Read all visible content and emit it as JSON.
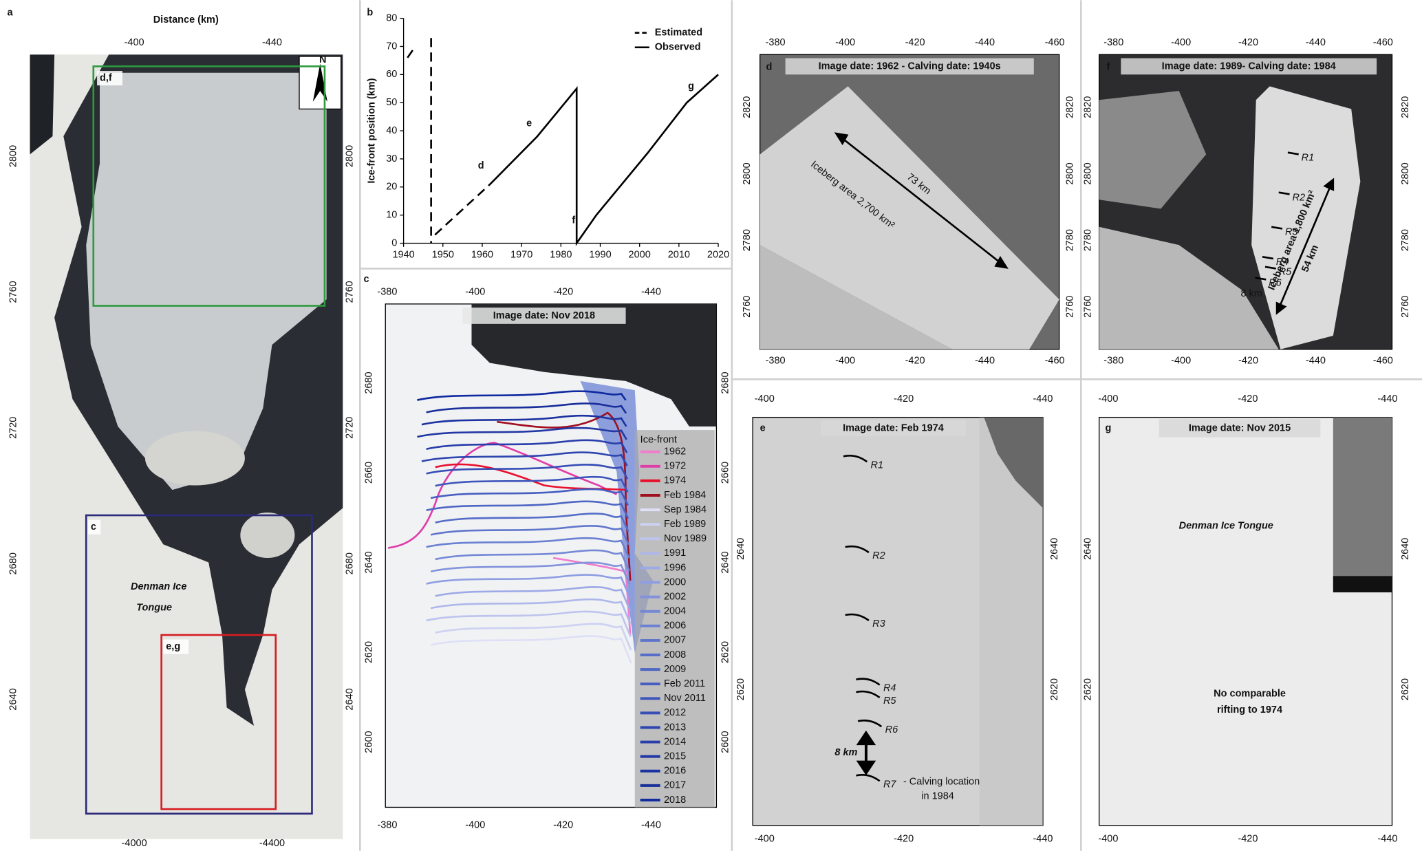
{
  "chart_data": {
    "type": "line",
    "panel_label": "b",
    "y_label": "Ice-front position (km)",
    "xlim": [
      1940,
      2020
    ],
    "xticks": [
      1940,
      1950,
      1960,
      1970,
      1980,
      1990,
      2000,
      2010,
      2020
    ],
    "ylim": [
      0,
      80
    ],
    "yticks": [
      0,
      10,
      20,
      30,
      40,
      50,
      60,
      70,
      80
    ],
    "legend": "upper right",
    "series": [
      {
        "name": "Estimated",
        "color": "#000000",
        "dash": true,
        "x": [
          1941,
          1943,
          null,
          1947,
          1947,
          null,
          1948,
          1962
        ],
        "values": [
          66,
          70,
          null,
          73,
          0,
          null,
          3,
          21
        ]
      },
      {
        "name": "Observed",
        "color": "#000000",
        "dash": false,
        "x": [
          1962,
          1974,
          1984,
          1984,
          1989,
          2002,
          2012,
          2020
        ],
        "values": [
          21,
          38,
          55,
          0,
          10,
          32,
          50,
          60
        ]
      }
    ],
    "point_labels": [
      "d",
      "e",
      "f",
      "g"
    ]
  },
  "panels": {
    "a": {
      "label": "a",
      "axis_title": "Distance (km)",
      "ticks": {
        "top": [
          "-400",
          "-440"
        ],
        "bottom": [
          "-4000",
          "-4400"
        ],
        "left": [
          "2800",
          "2760",
          "2720",
          "2680",
          "2640"
        ],
        "right": [
          "2800",
          "2760",
          "2720",
          "2680",
          "2640"
        ]
      },
      "boxes": [
        "d,f",
        "c",
        "e,g"
      ],
      "place_label": [
        "Denman Ice",
        "Tongue"
      ],
      "north": "N"
    },
    "c": {
      "label": "c",
      "title": "Image  date: Nov 2018",
      "ticks": {
        "top": [
          "-380",
          "-400",
          "-420",
          "-440"
        ],
        "bottom": [
          "-380",
          "-400",
          "-420",
          "-440"
        ],
        "left": [
          "2680",
          "2660",
          "2640",
          "2620",
          "2600"
        ],
        "right": [
          "2680",
          "2660",
          "2640",
          "2620",
          "2600"
        ]
      },
      "legend_title": "Ice-front",
      "fronts": [
        {
          "name": "1962",
          "color": "#f07ccc"
        },
        {
          "name": "1972",
          "color": "#e03ca8"
        },
        {
          "name": "1974",
          "color": "#e8102c"
        },
        {
          "name": "Feb 1984",
          "color": "#a01020"
        },
        {
          "name": "Sep 1984",
          "color": "#dde0f6"
        },
        {
          "name": "Feb 1989",
          "color": "#cdd1f2"
        },
        {
          "name": "Nov 1989",
          "color": "#bec4ee"
        },
        {
          "name": "1991",
          "color": "#aeb7ea"
        },
        {
          "name": "1996",
          "color": "#9eaae6"
        },
        {
          "name": "2000",
          "color": "#8f9ee2"
        },
        {
          "name": "2002",
          "color": "#8292dc"
        },
        {
          "name": "2004",
          "color": "#7588d6"
        },
        {
          "name": "2006",
          "color": "#6a80d2"
        },
        {
          "name": "2007",
          "color": "#6076cc"
        },
        {
          "name": "2008",
          "color": "#566ec8"
        },
        {
          "name": "2009",
          "color": "#4e66c4"
        },
        {
          "name": "Feb 2011",
          "color": "#465ec0"
        },
        {
          "name": "Nov 2011",
          "color": "#3e56bc"
        },
        {
          "name": "2012",
          "color": "#364eb6"
        },
        {
          "name": "2013",
          "color": "#2e46b0"
        },
        {
          "name": "2014",
          "color": "#283eaa"
        },
        {
          "name": "2015",
          "color": "#2238a4"
        },
        {
          "name": "2016",
          "color": "#1c32a0"
        },
        {
          "name": "2017",
          "color": "#182e9a"
        },
        {
          "name": "2018",
          "color": "#102aa0"
        }
      ]
    },
    "d": {
      "label": "d",
      "title": "Image date: 1962 - Calving date: 1940s",
      "ticks": {
        "top": [
          "-380",
          "-400",
          "-420",
          "-440",
          "-460"
        ],
        "bottom": [
          "-380",
          "-400",
          "-420",
          "-440",
          "-460"
        ],
        "left": [
          "2820",
          "2800",
          "2780",
          "2760"
        ],
        "right": [
          "2820",
          "2800",
          "2780",
          "2760"
        ]
      },
      "annotations": [
        "73 km",
        "Iceberg area 2,700 km²"
      ]
    },
    "e": {
      "label": "e",
      "title": "Image  date: Feb 1974",
      "ticks": {
        "top": [
          "-400",
          "-420",
          "-440"
        ],
        "bottom": [
          "-400",
          "-420",
          "-440"
        ],
        "left": [
          "2640",
          "2620"
        ],
        "right": [
          "2640",
          "2620"
        ]
      },
      "rifts": [
        "R1",
        "R2",
        "R3",
        "R4",
        "R5",
        "R6",
        "R7"
      ],
      "annotations": [
        "8 km",
        "- Calving location",
        "in 1984"
      ]
    },
    "f": {
      "label": "f",
      "title": "Image  date: 1989- Calving date: 1984",
      "ticks": {
        "top": [
          "-380",
          "-400",
          "-420",
          "-440",
          "-460"
        ],
        "bottom": [
          "-380",
          "-400",
          "-420",
          "-440",
          "-460"
        ],
        "left": [
          "2820",
          "2800",
          "2780",
          "2760"
        ],
        "right": [
          "2820",
          "2800",
          "2780",
          "2760"
        ]
      },
      "rifts": [
        "R1",
        "R2",
        "R3",
        "R4",
        "R5",
        "R6"
      ],
      "annotations": [
        "Iceberg area 1,800 km²",
        "54 km",
        "8 km"
      ]
    },
    "g": {
      "label": "g",
      "title": "Image  date: Nov 2015",
      "ticks": {
        "top": [
          "-400",
          "-420",
          "-440"
        ],
        "bottom": [
          "-400",
          "-420",
          "-440"
        ],
        "left": [
          "2640",
          "2620"
        ],
        "right": [
          "2640",
          "2620"
        ]
      },
      "annotations": [
        "Denman Ice Tongue",
        "No comparable",
        "rifting to 1974"
      ]
    }
  }
}
